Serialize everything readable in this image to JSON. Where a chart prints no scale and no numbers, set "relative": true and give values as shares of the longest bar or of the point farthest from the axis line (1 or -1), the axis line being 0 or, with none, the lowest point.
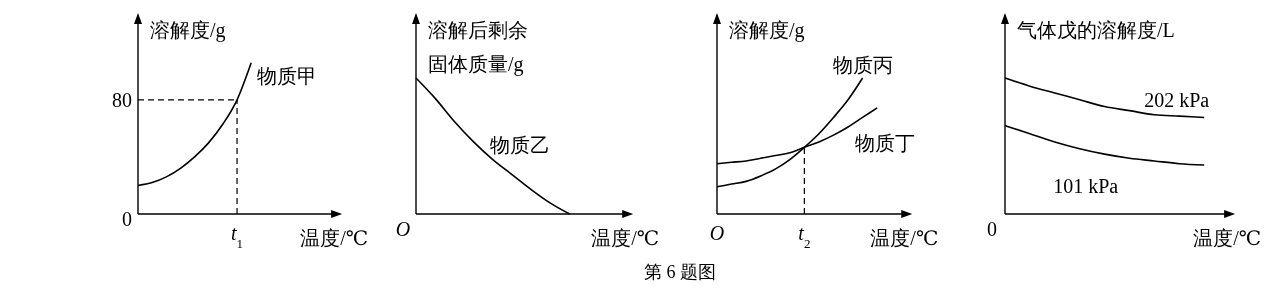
{
  "chart_data": [
    {
      "type": "line",
      "ylabel": "溶解度/g",
      "xlabel": "温度/℃",
      "categories": [
        null,
        null,
        null,
        null,
        null,
        null,
        null,
        "t$_{1}$",
        null,
        null,
        null,
        null,
        null,
        null,
        null
      ],
      "ylim": [
        0,
        138
      ],
      "yticks": [
        0,
        80
      ],
      "grid": false,
      "line_style": "solid",
      "ref_lines": [
        {
          "axis": "y",
          "value": 80,
          "line_style": "dashed"
        },
        {
          "axis": "x",
          "value": "t$_{1}$",
          "line_style": "dashed"
        }
      ],
      "series": [
        {
          "name": "物质甲",
          "color": "#000000",
          "values": [
            20,
            22,
            26,
            32,
            40,
            50,
            63,
            80,
            106,
            null,
            null,
            null,
            null,
            null,
            null
          ]
        }
      ]
    },
    {
      "type": "line",
      "relative": true,
      "ylabel": "溶解后剩余固体质量/g",
      "xlabel": "温度/℃",
      "categories": [
        null,
        null,
        null,
        null,
        null,
        null,
        null,
        null,
        null,
        null,
        null,
        null
      ],
      "grid": false,
      "annotations": [
        "O"
      ],
      "series": [
        {
          "name": "物质乙",
          "color": "#000000",
          "values": [
            1,
            0.85,
            0.68,
            0.53,
            0.4,
            0.29,
            0.18,
            0.08,
            0,
            null,
            null,
            null
          ]
        }
      ]
    },
    {
      "type": "line",
      "relative": true,
      "ylabel": "溶解度/g",
      "xlabel": "温度/℃",
      "categories": [
        "O",
        null,
        null,
        null,
        null,
        null,
        "t$_{2}$",
        null,
        null,
        null,
        null,
        null,
        null,
        null
      ],
      "grid": false,
      "annotations": [
        "第 6 题图"
      ],
      "ref_lines": [
        {
          "axis": "x",
          "value": "t$_{2}$",
          "line_style": "dashed"
        }
      ],
      "series": [
        {
          "name": "物质丙",
          "color": "#000000",
          "values": [
            0.2,
            0.22,
            0.24,
            0.28,
            0.33,
            0.4,
            0.49,
            0.59,
            0.71,
            0.84,
            1,
            null,
            null,
            null
          ]
        },
        {
          "name": "物质丁",
          "color": "#000000",
          "values": [
            0.37,
            0.38,
            0.39,
            0.41,
            0.43,
            0.45,
            0.49,
            0.53,
            0.58,
            0.64,
            0.71,
            0.78,
            null,
            null
          ]
        }
      ]
    },
    {
      "type": "line",
      "relative": true,
      "ylabel": "气体戊的溶解度/L",
      "xlabel": "温度/℃",
      "categories": [
        null,
        null,
        null,
        null,
        null,
        null,
        null,
        null,
        null,
        null
      ],
      "grid": false,
      "annotations": [
        "0"
      ],
      "series": [
        {
          "name": "202 kPa",
          "color": "#000000",
          "values": [
            1,
            0.94,
            0.89,
            0.84,
            0.79,
            0.76,
            0.73,
            0.72,
            0.71,
            null
          ]
        },
        {
          "name": "101 kPa",
          "color": "#000000",
          "values": [
            0.65,
            0.59,
            0.53,
            0.48,
            0.44,
            0.41,
            0.39,
            0.37,
            0.36,
            null
          ]
        }
      ]
    }
  ]
}
